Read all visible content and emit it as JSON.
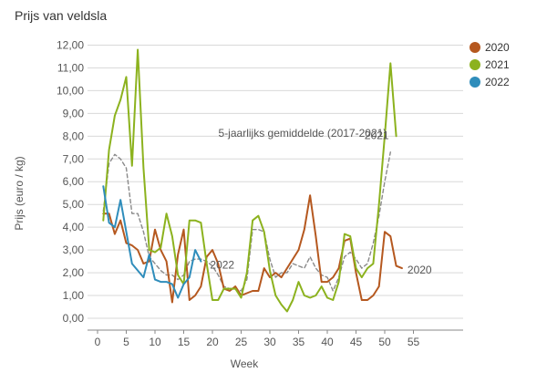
{
  "chart_data": {
    "type": "line",
    "title": "Prijs van veldsla",
    "xlabel": "Week",
    "ylabel": "Prijs (euro / kg)",
    "xlim": [
      0,
      62
    ],
    "ylim": [
      0,
      12.5
    ],
    "xticks": [
      0,
      5,
      10,
      15,
      20,
      25,
      30,
      35,
      40,
      45,
      50,
      55
    ],
    "xtick_labels": [
      "0",
      "5",
      "10",
      "15",
      "20",
      "25",
      "30",
      "35",
      "40",
      "45",
      "50",
      "55"
    ],
    "yticks": [
      0,
      1,
      2,
      3,
      4,
      5,
      6,
      7,
      8,
      9,
      10,
      11,
      12
    ],
    "ytick_labels": [
      "0,00",
      "1,00",
      "2,00",
      "3,00",
      "4,00",
      "5,00",
      "6,00",
      "7,00",
      "8,00",
      "9,00",
      "10,00",
      "11,00",
      "12,00"
    ],
    "legend_position": "top-right",
    "series": [
      {
        "name": "2020",
        "color": "#b5581f",
        "dash": false,
        "x": [
          1,
          2,
          3,
          4,
          5,
          6,
          7,
          8,
          9,
          10,
          11,
          12,
          13,
          14,
          15,
          16,
          17,
          18,
          19,
          20,
          21,
          22,
          23,
          24,
          25,
          26,
          27,
          28,
          29,
          30,
          31,
          32,
          33,
          34,
          35,
          36,
          37,
          38,
          39,
          40,
          41,
          42,
          43,
          44,
          45,
          46,
          47,
          48,
          49,
          50,
          51,
          52,
          53
        ],
        "values": [
          4.6,
          4.6,
          3.7,
          4.3,
          3.3,
          3.2,
          3.0,
          2.4,
          2.5,
          3.9,
          3.0,
          2.5,
          0.7,
          2.8,
          3.9,
          0.8,
          1.0,
          1.4,
          2.7,
          3.0,
          2.4,
          1.3,
          1.2,
          1.4,
          1.0,
          1.1,
          1.2,
          1.2,
          2.2,
          1.8,
          2.0,
          1.8,
          2.2,
          2.6,
          3.0,
          3.9,
          5.4,
          3.6,
          1.6,
          1.6,
          1.8,
          2.2,
          3.4,
          3.5,
          2.0,
          0.8,
          0.8,
          1.0,
          1.4,
          3.8,
          3.6,
          2.3,
          2.2
        ],
        "end_label": "2020"
      },
      {
        "name": "2021",
        "color": "#8cb21e",
        "dash": false,
        "x": [
          1,
          2,
          3,
          4,
          5,
          6,
          7,
          8,
          9,
          10,
          11,
          12,
          13,
          14,
          15,
          16,
          17,
          18,
          19,
          20,
          21,
          22,
          23,
          24,
          25,
          26,
          27,
          28,
          29,
          30,
          31,
          32,
          33,
          34,
          35,
          36,
          37,
          38,
          39,
          40,
          41,
          42,
          43,
          44,
          45,
          46,
          47,
          48,
          49,
          50,
          51,
          52
        ],
        "values": [
          4.3,
          7.4,
          8.9,
          9.6,
          10.6,
          6.7,
          11.8,
          6.6,
          3.0,
          2.9,
          3.1,
          4.6,
          3.6,
          1.9,
          1.5,
          4.3,
          4.3,
          4.2,
          2.4,
          0.8,
          0.8,
          1.3,
          1.3,
          1.3,
          0.9,
          2.0,
          4.3,
          4.5,
          3.8,
          2.1,
          1.0,
          0.6,
          0.3,
          0.8,
          1.6,
          1.0,
          0.9,
          1.0,
          1.4,
          0.9,
          0.8,
          1.6,
          3.7,
          3.6,
          2.2,
          1.8,
          2.2,
          2.4,
          5.0,
          8.0,
          11.2,
          8.0
        ],
        "end_label": "2021"
      },
      {
        "name": "2022",
        "color": "#2f8dbb",
        "dash": false,
        "x": [
          1,
          2,
          3,
          4,
          5,
          6,
          7,
          8,
          9,
          10,
          11,
          12,
          13,
          14,
          15,
          16,
          17,
          18
        ],
        "values": [
          5.8,
          4.2,
          4.0,
          5.2,
          3.8,
          2.4,
          2.1,
          1.8,
          2.8,
          1.7,
          1.6,
          1.6,
          1.5,
          0.9,
          1.5,
          1.8,
          3.0,
          2.5
        ],
        "end_label": "2022"
      },
      {
        "name": "5-jaarlijks gemiddelde (2017-2021)",
        "color": "#8a8a8a",
        "dash": true,
        "x": [
          1,
          2,
          3,
          4,
          5,
          6,
          7,
          8,
          9,
          10,
          11,
          12,
          13,
          14,
          15,
          16,
          17,
          18,
          19,
          20,
          21,
          22,
          23,
          24,
          25,
          26,
          27,
          28,
          29,
          30,
          31,
          32,
          33,
          34,
          35,
          36,
          37,
          38,
          39,
          40,
          41,
          42,
          43,
          44,
          45,
          46,
          47,
          48,
          49,
          50,
          51
        ],
        "values": [
          4.7,
          6.8,
          7.2,
          7.0,
          6.6,
          4.6,
          4.6,
          3.8,
          2.7,
          2.4,
          2.1,
          1.9,
          1.9,
          1.7,
          1.9,
          2.5,
          2.6,
          2.6,
          2.5,
          2.3,
          1.9,
          1.4,
          1.3,
          1.3,
          1.2,
          1.7,
          3.9,
          3.9,
          3.8,
          2.6,
          1.8,
          2.0,
          2.0,
          2.4,
          2.3,
          2.2,
          2.7,
          2.2,
          1.9,
          1.8,
          1.2,
          1.8,
          2.7,
          2.9,
          2.6,
          2.2,
          2.4,
          3.3,
          4.5,
          6.0,
          7.3
        ],
        "end_label": "5-jaarlijks gemiddelde (2017-2021)"
      }
    ]
  }
}
